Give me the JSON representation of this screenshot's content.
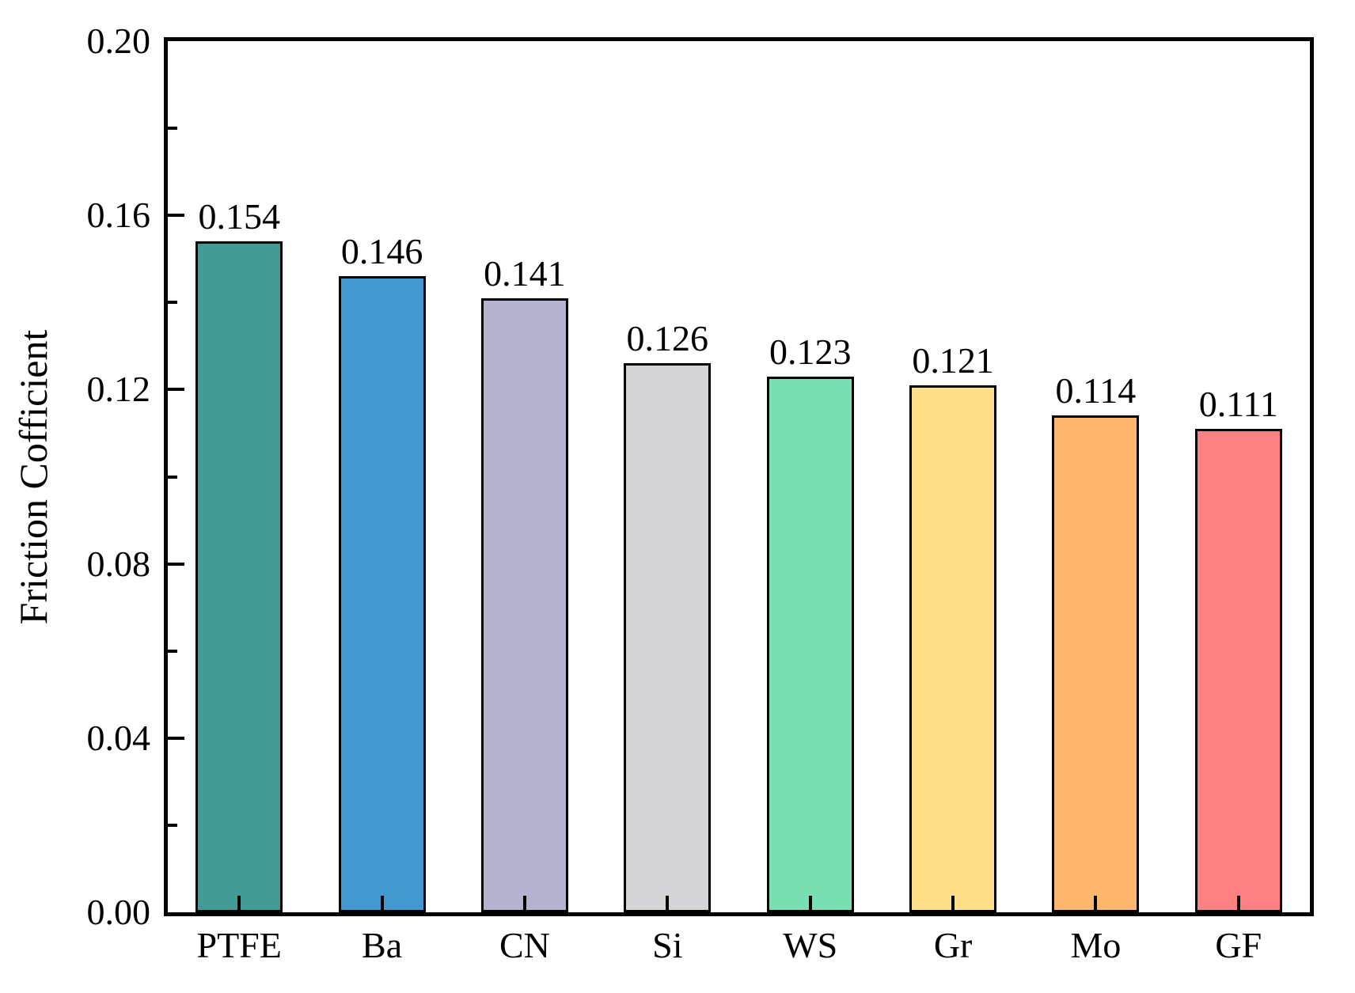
{
  "chart_data": {
    "type": "bar",
    "title": "",
    "xlabel": "",
    "ylabel": "Friction Cofficient",
    "categories": [
      "PTFE",
      "Ba",
      "CN",
      "Si",
      "WS",
      "Gr",
      "Mo",
      "GF"
    ],
    "values": [
      0.154,
      0.146,
      0.141,
      0.126,
      0.123,
      0.121,
      0.114,
      0.111
    ],
    "value_labels": [
      "0.154",
      "0.146",
      "0.141",
      "0.126",
      "0.123",
      "0.121",
      "0.114",
      "0.111"
    ],
    "bar_colors": [
      "#429a94",
      "#4299d0",
      "#b5b4d0",
      "#d5d4d6",
      "#79dfb2",
      "#fedf87",
      "#feb56c",
      "#fd8083"
    ],
    "bar_edge_color": "#000000",
    "axis_color": "#000000",
    "ylim": [
      0.0,
      0.2
    ],
    "y_major_ticks": [
      0.0,
      0.04,
      0.08,
      0.12,
      0.16,
      0.2
    ],
    "y_tick_labels": [
      "0.00",
      "0.04",
      "0.08",
      "0.12",
      "0.16",
      "0.20"
    ],
    "y_minor_ticks": [
      0.02,
      0.06,
      0.1,
      0.14,
      0.18
    ],
    "grid": false,
    "legend": false,
    "tick_direction": "in"
  }
}
